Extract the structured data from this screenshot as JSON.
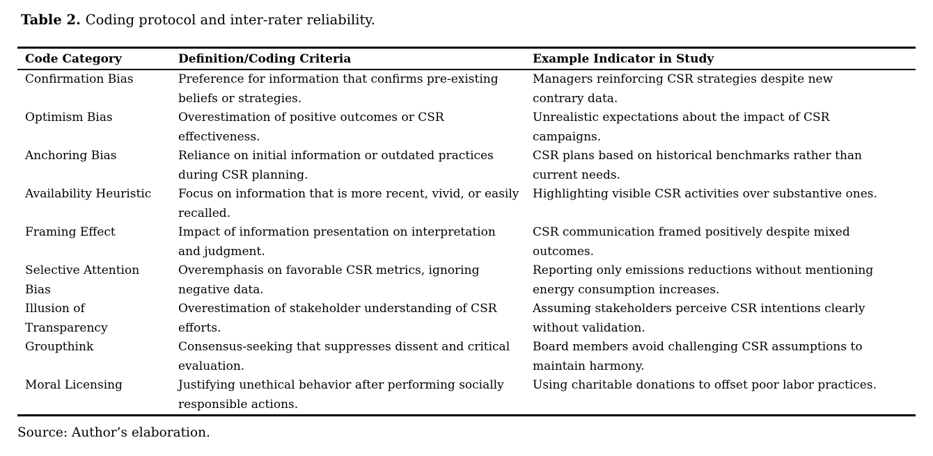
{
  "caption": {
    "label": "Table 2.",
    "text": "Coding protocol and inter-rater reliability."
  },
  "table": {
    "headers": [
      "Code Category",
      "Definition/Coding Criteria",
      "Example Indicator in Study"
    ],
    "row_fields": [
      "category",
      "definition",
      "example"
    ],
    "rows": [
      {
        "category": "Confirmation Bias",
        "definition": "Preference for information that confirms pre-existing beliefs or strategies.",
        "example": "Managers reinforcing CSR strategies despite new contrary data."
      },
      {
        "category": "Optimism Bias",
        "definition": "Overestimation of positive outcomes or CSR effectiveness.",
        "example": "Unrealistic expectations about the impact of CSR campaigns."
      },
      {
        "category": "Anchoring Bias",
        "definition": "Reliance on initial information or outdated practices during CSR planning.",
        "example": "CSR plans based on historical benchmarks rather than current needs."
      },
      {
        "category": "Availability Heuristic",
        "definition": "Focus on information that is more recent, vivid, or easily recalled.",
        "example": "Highlighting visible CSR activities over substantive ones."
      },
      {
        "category": "Framing Effect",
        "definition": "Impact of information presentation on interpretation and judgment.",
        "example": "CSR communication framed positively despite mixed outcomes."
      },
      {
        "category": "Selective Attention Bias",
        "definition": "Overemphasis on favorable CSR metrics, ignoring negative data.",
        "example": "Reporting only emissions reductions without mentioning energy consumption increases."
      },
      {
        "category": "Illusion of Transparency",
        "definition": "Overestimation of stakeholder understanding of CSR efforts.",
        "example": "Assuming stakeholders perceive CSR intentions clearly without validation."
      },
      {
        "category": "Groupthink",
        "definition": "Consensus-seeking that suppresses dissent and critical evaluation.",
        "example": "Board members avoid challenging CSR assumptions to maintain harmony."
      },
      {
        "category": "Moral Licensing",
        "definition": "Justifying unethical behavior after performing socially responsible actions.",
        "example": "Using charitable donations to offset poor labor practices."
      }
    ]
  },
  "source": "Source: Author’s elaboration."
}
